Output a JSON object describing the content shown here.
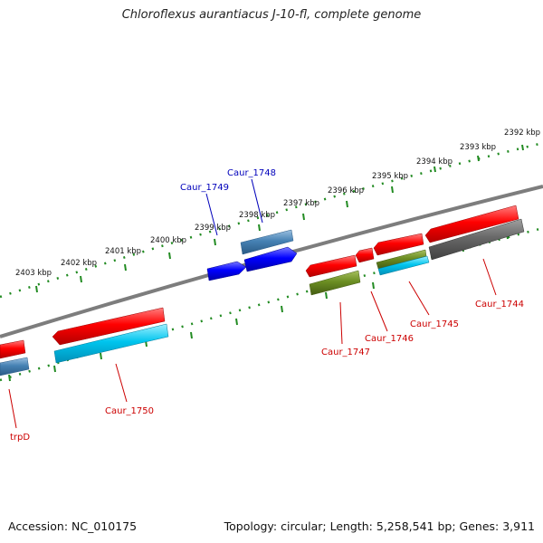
{
  "title": "Chloroflexus aurantiacus J-10-fl, complete genome",
  "footer": {
    "accession": "Accession: NC_010175",
    "summary": "Topology: circular; Length: 5,258,541 bp; Genes: 3,911"
  },
  "colors": {
    "forward_cds": "#ff0000",
    "reverse_cds": "#ff0000",
    "selected_gene": "#0000ff",
    "cyan_feature": "#00b8e6",
    "olive_feature": "#6b8e23",
    "gray_feature": "#666666",
    "steel_feature": "#4682b4",
    "backbone": "#8c8c8c",
    "ticks": "#228b22",
    "label_red": "#cc0000",
    "label_blue": "#0000bb"
  },
  "scale": {
    "ticks": [
      "2392 kbp",
      "2393 kbp",
      "2394 kbp",
      "2395 kbp",
      "2396 kbp",
      "2397 kbp",
      "2398 kbp",
      "2399 kbp",
      "2400 kbp",
      "2401 kbp",
      "2402 kbp",
      "2403 kbp"
    ]
  },
  "genes": [
    {
      "label": "trpD",
      "color": "label_red"
    },
    {
      "label": "Caur_1750",
      "color": "label_red"
    },
    {
      "label": "Caur_1749",
      "color": "label_blue"
    },
    {
      "label": "Caur_1748",
      "color": "label_blue"
    },
    {
      "label": "Caur_1747",
      "color": "label_red"
    },
    {
      "label": "Caur_1746",
      "color": "label_red"
    },
    {
      "label": "Caur_1745",
      "color": "label_red"
    },
    {
      "label": "Caur_1744",
      "color": "label_red"
    }
  ]
}
